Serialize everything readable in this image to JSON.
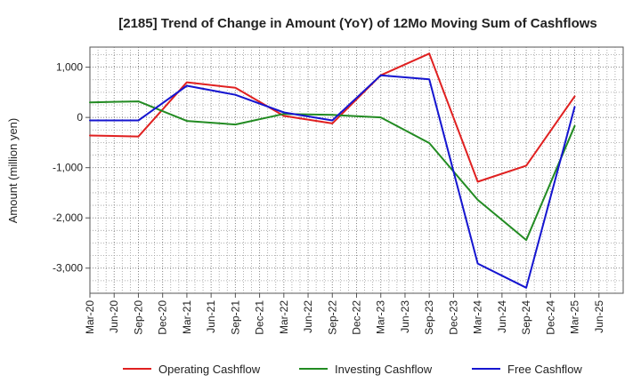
{
  "chart_data": {
    "type": "line",
    "title": "[2185]  Trend of Change in Amount (YoY) of 12Mo Moving Sum of Cashflows",
    "xlabel": "",
    "ylabel": "Amount (million yen)",
    "ylim": [
      -3500,
      1400
    ],
    "yticks": [
      1000,
      0,
      -1000,
      -2000,
      -3000
    ],
    "ytick_labels": [
      "1,000",
      "0",
      "-1,000",
      "-2,000",
      "-3,000"
    ],
    "categories": [
      "Mar-20",
      "Jun-20",
      "Sep-20",
      "Dec-20",
      "Mar-21",
      "Jun-21",
      "Sep-21",
      "Dec-21",
      "Mar-22",
      "Jun-22",
      "Sep-22",
      "Dec-22",
      "Mar-23",
      "Jun-23",
      "Sep-23",
      "Dec-23",
      "Mar-24",
      "Jun-24",
      "Sep-24",
      "Dec-24",
      "Mar-25",
      "Jun-25"
    ],
    "grid": true,
    "legend_position": "bottom",
    "series": [
      {
        "name": "Operating Cashflow",
        "color": "#e02020",
        "x": [
          "Mar-20",
          "Sep-20",
          "Mar-21",
          "Sep-21",
          "Mar-22",
          "Sep-22",
          "Mar-23",
          "Sep-23",
          "Mar-24",
          "Sep-24",
          "Mar-25"
        ],
        "values": [
          -360,
          -380,
          700,
          590,
          30,
          -120,
          840,
          1270,
          -1280,
          -960,
          420
        ]
      },
      {
        "name": "Investing Cashflow",
        "color": "#228b22",
        "x": [
          "Mar-20",
          "Sep-20",
          "Mar-21",
          "Sep-21",
          "Mar-22",
          "Sep-22",
          "Mar-23",
          "Sep-23",
          "Mar-24",
          "Sep-24",
          "Mar-25"
        ],
        "values": [
          300,
          320,
          -70,
          -140,
          70,
          50,
          0,
          -510,
          -1640,
          -2440,
          -170
        ]
      },
      {
        "name": "Free Cashflow",
        "color": "#1515d0",
        "x": [
          "Mar-20",
          "Sep-20",
          "Mar-21",
          "Sep-21",
          "Mar-22",
          "Sep-22",
          "Mar-23",
          "Sep-23",
          "Mar-24",
          "Sep-24",
          "Mar-25"
        ],
        "values": [
          -60,
          -60,
          630,
          450,
          100,
          -60,
          840,
          760,
          -2910,
          -3390,
          210
        ]
      }
    ]
  }
}
